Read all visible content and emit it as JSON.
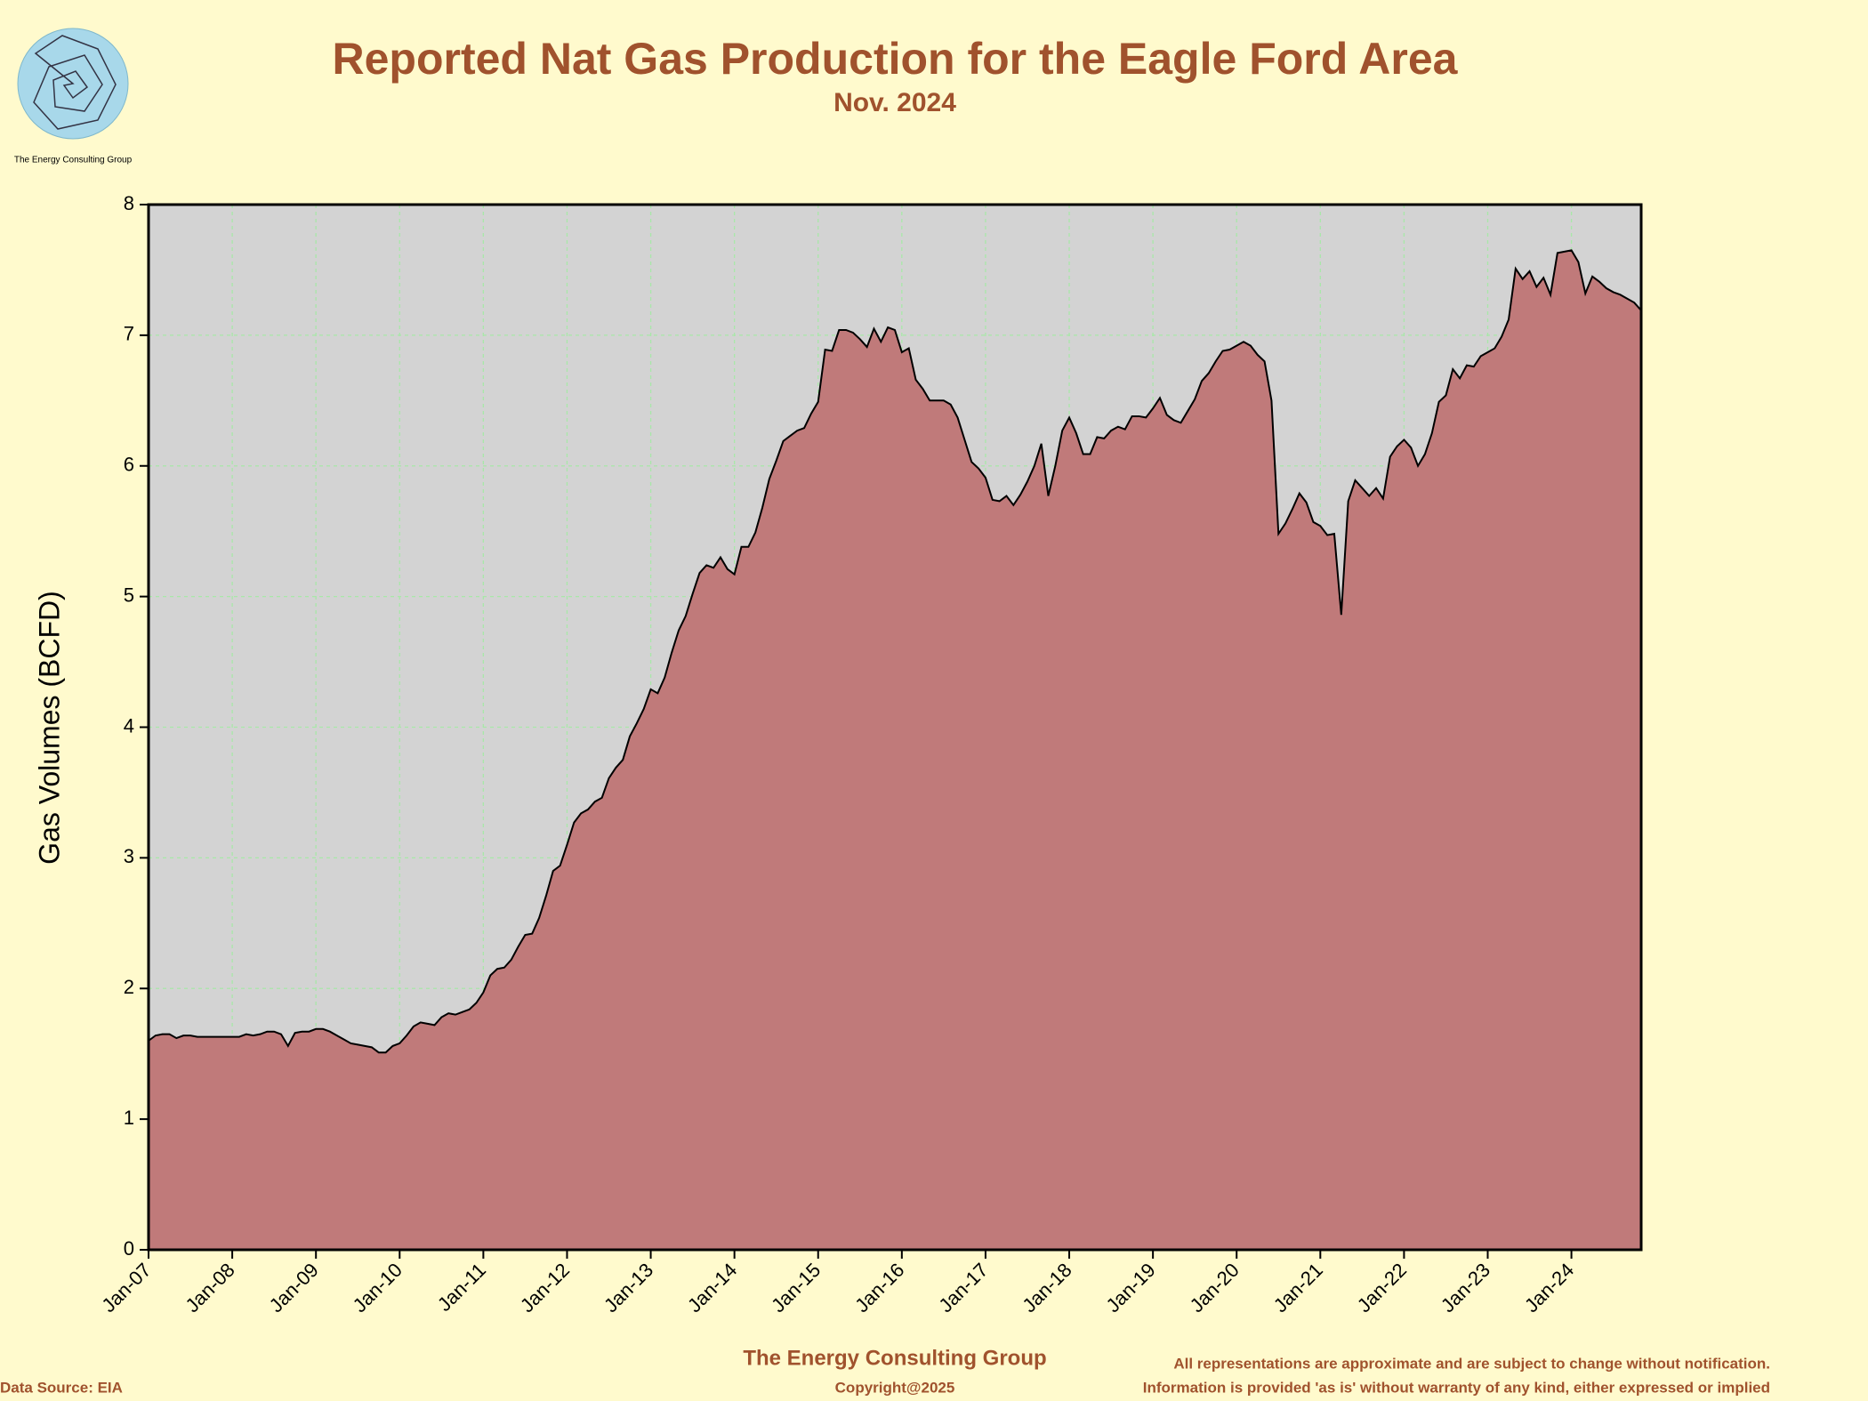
{
  "chart_data": {
    "type": "area",
    "title": "Reported Nat Gas Production for the Eagle Ford Area",
    "subtitle": "Nov. 2024",
    "ylabel": "Gas Volumes (BCFD)",
    "logo_text": "The Energy Consulting Group",
    "footer_company": "The Energy Consulting Group",
    "copyright": "Copyright@2025",
    "source": "Data Source: EIA",
    "disclaimer": [
      "All representations are approximate and are subject to change without notification.",
      "Information is provided 'as is' without warranty of any kind, either expressed or implied"
    ],
    "color": "#c07a7a",
    "grid": true,
    "ylim": [
      0,
      8
    ],
    "yticks": [
      0,
      1,
      2,
      3,
      4,
      5,
      6,
      7,
      8
    ],
    "categories": [
      "Jan-07",
      null,
      null,
      null,
      null,
      null,
      null,
      null,
      null,
      null,
      null,
      null,
      "Jan-08",
      null,
      null,
      null,
      null,
      null,
      null,
      null,
      null,
      null,
      null,
      null,
      "Jan-09",
      null,
      null,
      null,
      null,
      null,
      null,
      null,
      null,
      null,
      null,
      null,
      "Jan-10",
      null,
      null,
      null,
      null,
      null,
      null,
      null,
      null,
      null,
      null,
      null,
      "Jan-11",
      null,
      null,
      null,
      null,
      null,
      null,
      null,
      null,
      null,
      null,
      null,
      "Jan-12",
      null,
      null,
      null,
      null,
      null,
      null,
      null,
      null,
      null,
      null,
      null,
      "Jan-13",
      null,
      null,
      null,
      null,
      null,
      null,
      null,
      null,
      null,
      null,
      null,
      "Jan-14",
      null,
      null,
      null,
      null,
      null,
      null,
      null,
      null,
      null,
      null,
      null,
      "Jan-15",
      null,
      null,
      null,
      null,
      null,
      null,
      null,
      null,
      null,
      null,
      null,
      "Jan-16",
      null,
      null,
      null,
      null,
      null,
      null,
      null,
      null,
      null,
      null,
      null,
      "Jan-17",
      null,
      null,
      null,
      null,
      null,
      null,
      null,
      null,
      null,
      null,
      null,
      "Jan-18",
      null,
      null,
      null,
      null,
      null,
      null,
      null,
      null,
      null,
      null,
      null,
      "Jan-19",
      null,
      null,
      null,
      null,
      null,
      null,
      null,
      null,
      null,
      null,
      null,
      "Jan-20",
      null,
      null,
      null,
      null,
      null,
      null,
      null,
      null,
      null,
      null,
      null,
      "Jan-21",
      null,
      null,
      null,
      null,
      null,
      null,
      null,
      null,
      null,
      null,
      null,
      "Jan-22",
      null,
      null,
      null,
      null,
      null,
      null,
      null,
      null,
      null,
      null,
      null,
      "Jan-23",
      null,
      null,
      null,
      null,
      null,
      null,
      null,
      null,
      null,
      null,
      null,
      "Jan-24",
      null,
      null,
      null,
      null,
      null,
      null,
      null,
      null,
      null,
      null
    ],
    "values": [
      1.6,
      1.64,
      1.65,
      1.65,
      1.62,
      1.64,
      1.64,
      1.63,
      1.63,
      1.63,
      1.63,
      1.63,
      1.63,
      1.63,
      1.65,
      1.64,
      1.65,
      1.67,
      1.67,
      1.65,
      1.56,
      1.66,
      1.67,
      1.67,
      1.69,
      1.69,
      1.67,
      1.64,
      1.61,
      1.58,
      1.57,
      1.56,
      1.55,
      1.51,
      1.51,
      1.56,
      1.58,
      1.64,
      1.71,
      1.74,
      1.73,
      1.72,
      1.78,
      1.81,
      1.8,
      1.82,
      1.84,
      1.89,
      1.97,
      2.1,
      2.15,
      2.16,
      2.22,
      2.32,
      2.41,
      2.42,
      2.54,
      2.71,
      2.9,
      2.94,
      3.1,
      3.27,
      3.34,
      3.37,
      3.43,
      3.46,
      3.61,
      3.69,
      3.75,
      3.93,
      4.03,
      4.14,
      4.29,
      4.26,
      4.38,
      4.57,
      4.74,
      4.85,
      5.02,
      5.18,
      5.24,
      5.22,
      5.3,
      5.21,
      5.17,
      5.38,
      5.38,
      5.49,
      5.68,
      5.9,
      6.04,
      6.19,
      6.23,
      6.27,
      6.29,
      6.4,
      6.49,
      6.89,
      6.88,
      7.04,
      7.04,
      7.02,
      6.97,
      6.91,
      7.05,
      6.95,
      7.06,
      7.04,
      6.87,
      6.9,
      6.66,
      6.59,
      6.5,
      6.5,
      6.5,
      6.47,
      6.37,
      6.2,
      6.03,
      5.98,
      5.91,
      5.74,
      5.73,
      5.77,
      5.7,
      5.78,
      5.88,
      6.0,
      6.17,
      5.77,
      6.0,
      6.27,
      6.37,
      6.25,
      6.09,
      6.09,
      6.22,
      6.21,
      6.27,
      6.3,
      6.28,
      6.38,
      6.38,
      6.37,
      6.44,
      6.52,
      6.39,
      6.35,
      6.33,
      6.42,
      6.51,
      6.65,
      6.71,
      6.8,
      6.88,
      6.89,
      6.92,
      6.95,
      6.92,
      6.85,
      6.8,
      6.5,
      5.48,
      5.56,
      5.67,
      5.79,
      5.72,
      5.57,
      5.54,
      5.47,
      5.48,
      4.86,
      5.73,
      5.89,
      5.83,
      5.77,
      5.83,
      5.75,
      6.07,
      6.15,
      6.2,
      6.14,
      6.0,
      6.09,
      6.25,
      6.49,
      6.54,
      6.74,
      6.67,
      6.77,
      6.76,
      6.84,
      6.87,
      6.9,
      6.99,
      7.12,
      7.51,
      7.43,
      7.49,
      7.37,
      7.44,
      7.31,
      7.63,
      7.64,
      7.65,
      7.56,
      7.32,
      7.45,
      7.41,
      7.36,
      7.33,
      7.31,
      7.28,
      7.25,
      7.19
    ]
  }
}
